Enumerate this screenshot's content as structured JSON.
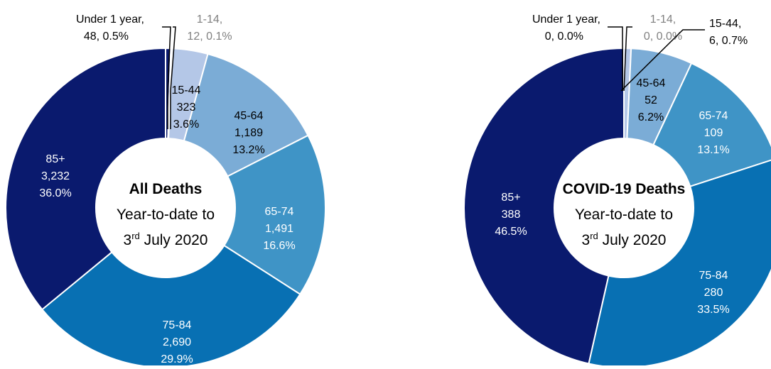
{
  "chart_data": [
    {
      "type": "pie",
      "variant": "donut",
      "categories": [
        "Under 1 year",
        "1-14",
        "15-44",
        "45-64",
        "65-74",
        "75-84",
        "85+"
      ],
      "values": [
        48,
        12,
        323,
        1189,
        1491,
        2690,
        3232
      ],
      "value_labels": [
        "48",
        "12",
        "323",
        "1,189",
        "1,491",
        "2,690",
        "3,232"
      ],
      "percent_labels": [
        "0.5%",
        "0.1%",
        "3.6%",
        "13.2%",
        "16.6%",
        "29.9%",
        "36.0%"
      ],
      "colors": [
        "#0a1a6e",
        "#c9d6ea",
        "#b4c7e7",
        "#7bacd6",
        "#3f94c6",
        "#0870b3",
        "#0a1a6e"
      ],
      "label_colors": [
        "#000000",
        "#808080",
        "#000000",
        "#000000",
        "#ffffff",
        "#ffffff",
        "#ffffff"
      ],
      "center_title": "All Deaths",
      "center_line2": "Year-to-date to",
      "center_day": "3",
      "center_suffix": "rd",
      "center_rest": " July 2020"
    },
    {
      "type": "pie",
      "variant": "donut",
      "categories": [
        "Under 1 year",
        "1-14",
        "15-44",
        "45-64",
        "65-74",
        "75-84",
        "85+"
      ],
      "values": [
        0,
        0,
        6,
        52,
        109,
        280,
        388
      ],
      "value_labels": [
        "0",
        "0",
        "6",
        "52",
        "109",
        "280",
        "388"
      ],
      "percent_labels": [
        "0.0%",
        "0.0%",
        "0.7%",
        "6.2%",
        "13.1%",
        "33.5%",
        "46.5%"
      ],
      "colors": [
        "#0a1a6e",
        "#c9d6ea",
        "#b4c7e7",
        "#7bacd6",
        "#3f94c6",
        "#0870b3",
        "#0a1a6e"
      ],
      "label_colors": [
        "#000000",
        "#808080",
        "#000000",
        "#000000",
        "#ffffff",
        "#ffffff",
        "#ffffff"
      ],
      "center_title": "COVID-19 Deaths",
      "center_line2": "Year-to-date to",
      "center_day": "3",
      "center_suffix": "rd",
      "center_rest": " July 2020"
    }
  ]
}
